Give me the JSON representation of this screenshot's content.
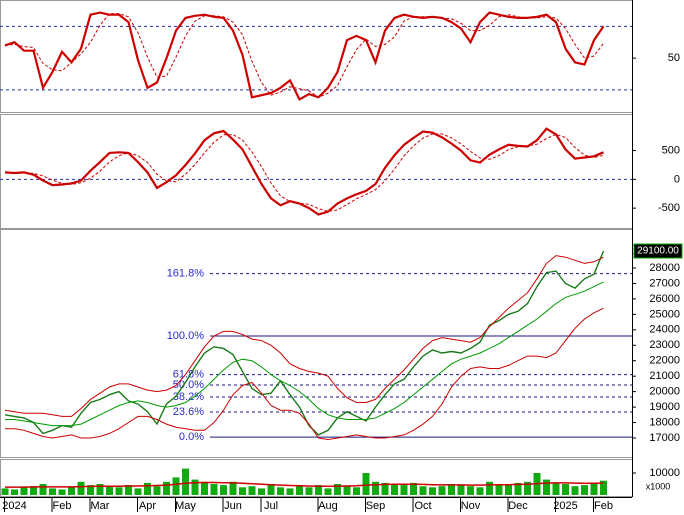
{
  "chart_data": [
    {
      "type": "stochastic",
      "ylim": [
        1,
        103
      ],
      "yticks": [
        50
      ],
      "levels": [
        80,
        20
      ],
      "series": [
        {
          "color": "#cc0000",
          "dashed": false,
          "values": [
            62,
            65,
            57,
            57,
            22,
            37,
            56,
            46,
            59,
            91,
            93,
            91,
            91,
            84,
            48,
            22,
            27,
            50,
            76,
            88,
            90,
            91,
            89,
            88,
            76,
            53,
            13,
            15,
            17,
            22,
            29,
            11,
            16,
            13,
            22,
            37,
            67,
            71,
            67,
            46,
            76,
            88,
            91,
            89,
            88,
            89,
            88,
            84,
            78,
            65,
            84,
            93,
            91,
            89,
            88,
            88,
            89,
            91,
            84,
            59,
            46,
            44,
            67,
            80
          ]
        },
        {
          "color": "#cc0000",
          "dashed": true,
          "values": [
            62,
            63,
            61,
            60,
            45,
            39,
            38,
            46,
            54,
            65,
            81,
            92,
            92,
            89,
            74,
            51,
            32,
            33,
            51,
            71,
            85,
            90,
            90,
            89,
            84,
            72,
            47,
            27,
            15,
            18,
            23,
            21,
            19,
            13,
            17,
            24,
            42,
            58,
            68,
            61,
            63,
            70,
            85,
            89,
            89,
            89,
            88,
            87,
            83,
            76,
            76,
            81,
            89,
            91,
            89,
            88,
            88,
            89,
            88,
            78,
            63,
            50,
            52,
            64
          ]
        }
      ]
    },
    {
      "type": "macd",
      "ylim": [
        -810,
        1100
      ],
      "yticks": [
        500,
        0,
        -500
      ],
      "levels": [
        0
      ],
      "series": [
        {
          "color": "#cc0000",
          "dashed": false,
          "values": [
            120,
            110,
            120,
            80,
            -20,
            -100,
            -90,
            -70,
            -20,
            150,
            300,
            460,
            470,
            460,
            300,
            120,
            -150,
            -50,
            70,
            250,
            450,
            680,
            800,
            840,
            690,
            520,
            220,
            -80,
            -330,
            -450,
            -380,
            -420,
            -500,
            -610,
            -560,
            -420,
            -330,
            -260,
            -200,
            -80,
            200,
            420,
            600,
            720,
            830,
            810,
            730,
            620,
            500,
            330,
            290,
            430,
            520,
            600,
            580,
            570,
            680,
            880,
            780,
            520,
            360,
            380,
            400,
            470
          ]
        },
        {
          "color": "#cc0000",
          "dashed": true,
          "values": [
            120,
            115,
            117,
            103,
            60,
            -13,
            -70,
            -87,
            -60,
            20,
            143,
            303,
            410,
            463,
            410,
            293,
            90,
            -27,
            -43,
            90,
            257,
            460,
            643,
            773,
            777,
            683,
            477,
            220,
            -63,
            -287,
            -387,
            -417,
            -433,
            -510,
            -557,
            -530,
            -437,
            -337,
            -263,
            -180,
            -27,
            180,
            407,
            580,
            717,
            787,
            790,
            720,
            617,
            483,
            373,
            350,
            413,
            517,
            567,
            583,
            610,
            710,
            780,
            727,
            553,
            420,
            380,
            417
          ]
        }
      ]
    },
    {
      "type": "price",
      "ylim": [
        15900,
        30330
      ],
      "yticks": [
        17000,
        18000,
        19000,
        20000,
        21000,
        22000,
        23000,
        24000,
        25000,
        26000,
        27000,
        28000
      ],
      "last_price": {
        "value": 29100,
        "label": "29100.00"
      },
      "last_price_color": "#00aa00",
      "fib_levels": [
        {
          "value": 27640,
          "label": "161.8%"
        },
        {
          "value": 23600,
          "label": "100.0%"
        },
        {
          "value": 21100,
          "label": "61.8%"
        },
        {
          "value": 20430,
          "label": "50.0%"
        },
        {
          "value": 19650,
          "label": "38.2%"
        },
        {
          "value": 18680,
          "label": "23.6%"
        },
        {
          "value": 17060,
          "label": "0.0%"
        }
      ],
      "series": [
        {
          "color": "#1a7a1a",
          "width": 1.4,
          "values": [
            18500,
            18400,
            18300,
            18000,
            17300,
            17500,
            17800,
            17700,
            18600,
            19300,
            19500,
            19800,
            20000,
            19400,
            19200,
            18700,
            17900,
            19200,
            19700,
            20600,
            21600,
            22500,
            22900,
            22800,
            22400,
            21300,
            20200,
            19800,
            19900,
            20700,
            19800,
            19000,
            17800,
            17200,
            17500,
            18300,
            18700,
            18400,
            18100,
            19000,
            19800,
            20500,
            20800,
            21600,
            22300,
            22700,
            22500,
            22600,
            22500,
            22800,
            23200,
            24300,
            24600,
            25000,
            25200,
            25700,
            26800,
            27700,
            27800,
            27000,
            26700,
            27300,
            27600,
            29100
          ]
        },
        {
          "color": "#009900",
          "width": 1,
          "values": [
            18200,
            18200,
            18100,
            18000,
            17900,
            17800,
            17800,
            17800,
            17900,
            18200,
            18500,
            18800,
            19100,
            19300,
            19400,
            19300,
            19100,
            19000,
            19100,
            19300,
            19700,
            20200,
            20800,
            21400,
            21900,
            22100,
            22000,
            21600,
            21100,
            20700,
            20400,
            20000,
            19500,
            18900,
            18500,
            18300,
            18200,
            18200,
            18200,
            18300,
            18600,
            18900,
            19300,
            19800,
            20300,
            20800,
            21300,
            21800,
            22100,
            22300,
            22500,
            22800,
            23100,
            23500,
            23900,
            24300,
            24700,
            25200,
            25700,
            26100,
            26300,
            26500,
            26800,
            27100
          ]
        },
        {
          "color": "#cc0000",
          "width": 1,
          "values": [
            18800,
            18700,
            18600,
            18600,
            18600,
            18500,
            18400,
            18400,
            18900,
            19500,
            19900,
            20300,
            20500,
            20500,
            20300,
            20100,
            20000,
            20100,
            20400,
            21100,
            22000,
            22900,
            23600,
            23900,
            23900,
            23700,
            23400,
            23300,
            23000,
            22500,
            21800,
            21500,
            21300,
            21200,
            21000,
            20200,
            19600,
            19300,
            19300,
            19500,
            20200,
            20800,
            21400,
            22100,
            22800,
            23300,
            23500,
            23400,
            23300,
            23200,
            23500,
            24200,
            24800,
            25400,
            25900,
            26400,
            27300,
            28300,
            28800,
            28700,
            28500,
            28300,
            28400,
            28700
          ]
        },
        {
          "color": "#cc0000",
          "width": 1,
          "values": [
            17600,
            17600,
            17500,
            17300,
            17100,
            17000,
            17100,
            17200,
            17000,
            17000,
            17100,
            17300,
            17600,
            18000,
            18400,
            18400,
            18200,
            17900,
            17700,
            17600,
            17500,
            17500,
            18000,
            18800,
            19800,
            20400,
            20600,
            19900,
            19100,
            18800,
            18800,
            18600,
            17900,
            17000,
            16900,
            17000,
            17100,
            17200,
            17100,
            17000,
            17000,
            17100,
            17200,
            17500,
            17900,
            18400,
            19200,
            20300,
            21000,
            21500,
            21600,
            21500,
            21500,
            21700,
            22000,
            22300,
            22300,
            22200,
            22500,
            23300,
            24100,
            24700,
            25100,
            25400
          ]
        }
      ]
    },
    {
      "type": "volume",
      "ylim": [
        0,
        15000
      ],
      "yticks": [
        10000
      ],
      "unit_label": "x1000",
      "color": "#11aa11",
      "ma_color": "#cc0000",
      "categories": [
        null,
        "2024",
        null,
        null,
        null,
        null,
        "Feb",
        null,
        null,
        null,
        "Mar",
        null,
        null,
        null,
        null,
        "Apr",
        null,
        null,
        null,
        "May",
        null,
        null,
        null,
        null,
        "Jun",
        null,
        null,
        null,
        "Jul",
        null,
        null,
        null,
        null,
        null,
        "Aug",
        null,
        null,
        null,
        null,
        "Sep",
        null,
        null,
        null,
        null,
        "Oct",
        null,
        null,
        null,
        null,
        "Nov",
        null,
        null,
        null,
        null,
        "Dec",
        null,
        null,
        null,
        null,
        "2025",
        null,
        null,
        null,
        "Feb"
      ],
      "values": [
        3000,
        2500,
        3500,
        4000,
        5000,
        3000,
        2500,
        3500,
        6000,
        4500,
        5000,
        4000,
        3500,
        4500,
        3000,
        5500,
        4000,
        6000,
        8000,
        12000,
        7000,
        6000,
        5000,
        4500,
        6000,
        3500,
        4000,
        3000,
        5000,
        3500,
        3000,
        4000,
        3500,
        4500,
        3000,
        5000,
        4000,
        3500,
        10000,
        6000,
        5500,
        5000,
        4500,
        5500,
        4000,
        3500,
        4000,
        5000,
        4500,
        4000,
        3500,
        6000,
        5000,
        4500,
        5500,
        6000,
        10000,
        7000,
        5500,
        5000,
        4000,
        4500,
        5000,
        6500
      ],
      "ma": [
        3600,
        3600,
        3600,
        3700,
        3700,
        3700,
        3700,
        3700,
        3800,
        3900,
        4000,
        4000,
        4000,
        4100,
        4100,
        4200,
        4300,
        4500,
        4900,
        5300,
        5600,
        5700,
        5700,
        5600,
        5500,
        5300,
        5100,
        4900,
        4700,
        4500,
        4300,
        4200,
        4100,
        4000,
        4000,
        4000,
        4100,
        4200,
        4500,
        4700,
        4800,
        4900,
        4900,
        4900,
        4800,
        4700,
        4600,
        4600,
        4600,
        4500,
        4500,
        4600,
        4700,
        4700,
        4800,
        4900,
        5200,
        5400,
        5500,
        5500,
        5400,
        5300,
        5300,
        5400
      ]
    }
  ]
}
